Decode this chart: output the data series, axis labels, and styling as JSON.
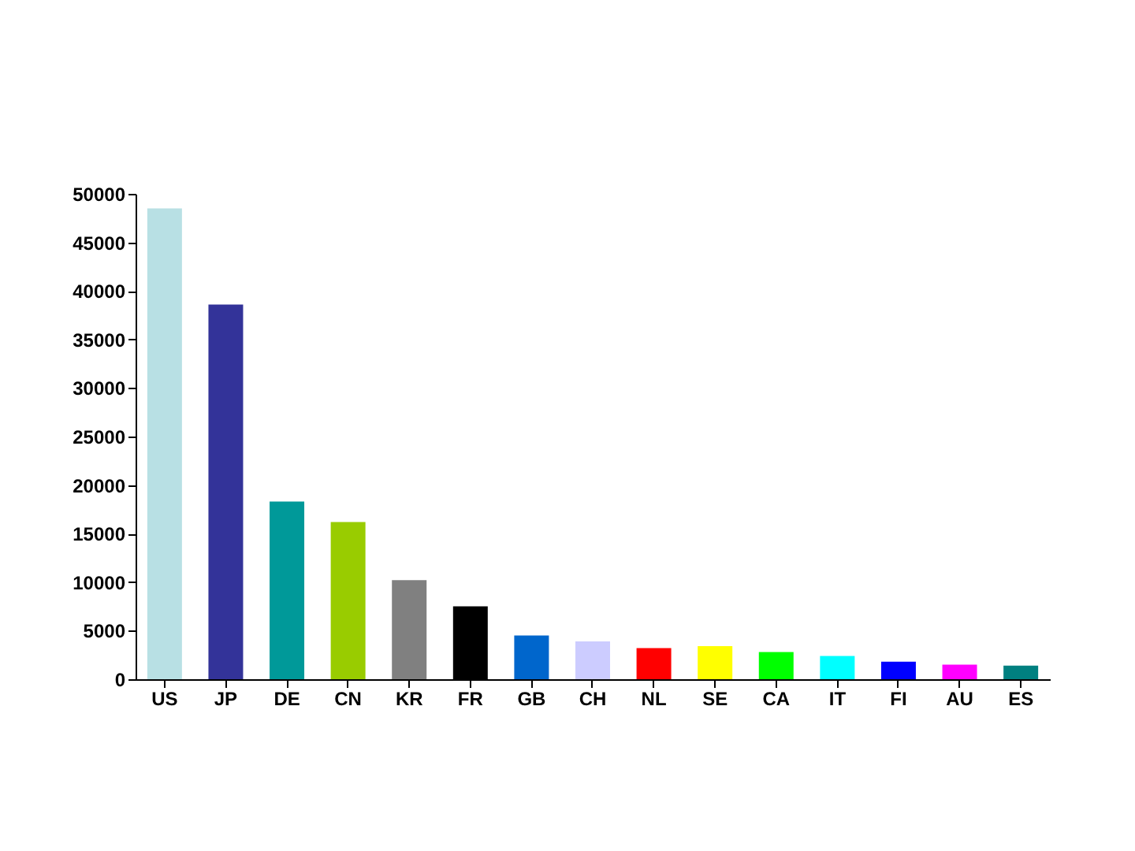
{
  "chart_data": {
    "type": "bar",
    "categories": [
      "US",
      "JP",
      "DE",
      "CN",
      "KR",
      "FR",
      "GB",
      "CH",
      "NL",
      "SE",
      "CA",
      "IT",
      "FI",
      "AU",
      "ES"
    ],
    "values": [
      48500,
      38600,
      18300,
      16200,
      10200,
      7500,
      4500,
      3900,
      3200,
      3400,
      2800,
      2400,
      1800,
      1500,
      1400
    ],
    "colors": [
      "#b8e0e4",
      "#333399",
      "#009999",
      "#99cc00",
      "#808080",
      "#000000",
      "#0066cc",
      "#ccccff",
      "#ff0000",
      "#ffff00",
      "#00ff00",
      "#00ffff",
      "#0000ff",
      "#ff00ff",
      "#008080"
    ],
    "ylim": [
      0,
      50000
    ],
    "yticks": [
      0,
      5000,
      10000,
      15000,
      20000,
      25000,
      30000,
      35000,
      40000,
      45000,
      50000
    ],
    "grid": false,
    "legend": false
  }
}
